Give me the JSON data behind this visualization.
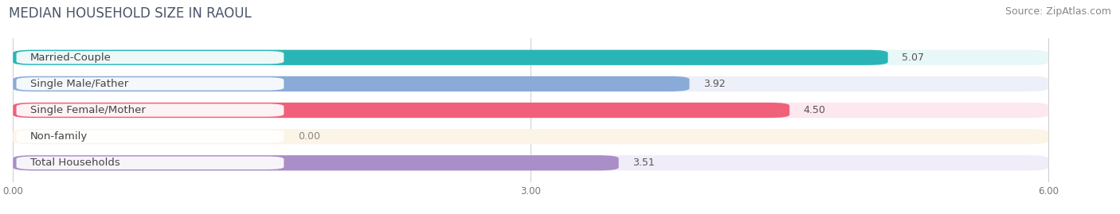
{
  "title": "MEDIAN HOUSEHOLD SIZE IN RAOUL",
  "source": "Source: ZipAtlas.com",
  "categories": [
    "Married-Couple",
    "Single Male/Father",
    "Single Female/Mother",
    "Non-family",
    "Total Households"
  ],
  "values": [
    5.07,
    3.92,
    4.5,
    0.0,
    3.51
  ],
  "bar_colors": [
    "#29b5b5",
    "#8aaad8",
    "#f0607a",
    "#f5c98a",
    "#a98ec8"
  ],
  "bg_colors": [
    "#e8f7f7",
    "#edf0f8",
    "#fce8ee",
    "#fdf4e8",
    "#f0ecf8"
  ],
  "xlim_max": 6.0,
  "xticks": [
    0.0,
    3.0,
    6.0
  ],
  "xtick_labels": [
    "0.00",
    "3.00",
    "6.00"
  ],
  "title_fontsize": 12,
  "source_fontsize": 9,
  "label_fontsize": 9.5,
  "value_fontsize": 9,
  "background_color": "#ffffff"
}
